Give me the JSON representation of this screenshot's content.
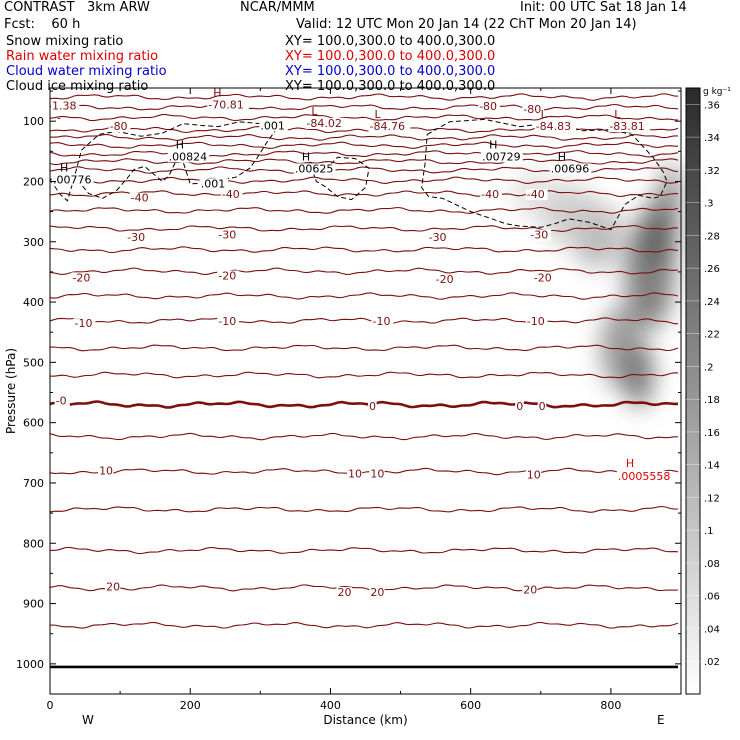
{
  "header": {
    "model": "CONTRAST   3km ARW",
    "center": "NCAR/MMM",
    "init": "Init: 00 UTC Sat 18 Jan 14",
    "fcst": "Fcst:    60 h",
    "valid": "Valid: 12 UTC Mon 20 Jan 14 (22 ChT Mon 20 Jan 14)",
    "fields": [
      {
        "name": "Snow mixing ratio",
        "xy": "XY= 100.0,300.0 to 400.0,300.0",
        "color": "#000000"
      },
      {
        "name": "Rain water mixing ratio",
        "xy": "XY= 100.0,300.0 to 400.0,300.0",
        "color": "#dd0000"
      },
      {
        "name": "Cloud water mixing ratio",
        "xy": "XY= 100.0,300.0 to 400.0,300.0",
        "color": "#0000cc"
      },
      {
        "name": "Cloud ice mixing ratio",
        "xy": "XY= 100.0,300.0 to 400.0,300.0",
        "color": "#000000"
      }
    ]
  },
  "colors": {
    "temperature": "#7a1010",
    "zero_isotherm": "#7a1010",
    "cloud_ice_contour": "#000000",
    "snow_shading": "#555555",
    "rain_label": "#dd0000"
  },
  "chart_data": {
    "type": "heatmap",
    "title": "",
    "xlabel": "Distance (km)",
    "ylabel": "Pressure (hPa)",
    "xlim": [
      0,
      900
    ],
    "ylim": [
      1050,
      45
    ],
    "y_scale": "linear, pressure decreasing upward",
    "x_ticks": [
      "0",
      "200",
      "400",
      "600",
      "800"
    ],
    "y_ticks": [
      "100",
      "200",
      "300",
      "400",
      "500",
      "600",
      "700",
      "800",
      "900",
      "1000"
    ],
    "x_ends": {
      "left": "W",
      "right": "E"
    },
    "colorbar": {
      "unit": "g kg⁻¹",
      "ticks": [
        ".36",
        ".34",
        ".32",
        ".3",
        ".28",
        ".26",
        ".24",
        ".22",
        ".2",
        ".18",
        ".16",
        ".14",
        ".12",
        ".1",
        ".08",
        ".06",
        ".04",
        ".02"
      ],
      "range": [
        0,
        0.37
      ]
    },
    "temperature_contours": [
      {
        "p": 60
      },
      {
        "p": 77
      },
      {
        "p": 94
      },
      {
        "p": 114
      },
      {
        "p": 127
      },
      {
        "p": 140
      },
      {
        "p": 154
      },
      {
        "p": 167
      },
      {
        "p": 181
      },
      {
        "p": 198
      },
      {
        "p": 220
      },
      {
        "p": 248
      },
      {
        "p": 278
      },
      {
        "p": 313
      },
      {
        "p": 349
      },
      {
        "p": 390
      },
      {
        "p": 431
      },
      {
        "p": 476
      },
      {
        "p": 521
      },
      {
        "p": 570,
        "bold": true
      },
      {
        "p": 623
      },
      {
        "p": 681
      },
      {
        "p": 744
      },
      {
        "p": 812
      },
      {
        "p": 874
      },
      {
        "p": 936
      },
      {
        "p": 1005,
        "bold": true
      }
    ],
    "contour_labels": [
      {
        "text": "-80",
        "x": 85,
        "p": 108
      },
      {
        "text": "-80",
        "x": 612,
        "p": 75
      },
      {
        "text": "-80",
        "x": 675,
        "p": 80
      },
      {
        "text": "-40",
        "x": 115,
        "p": 227
      },
      {
        "text": "-40",
        "x": 245,
        "p": 221
      },
      {
        "text": "-40",
        "x": 615,
        "p": 221
      },
      {
        "text": "-40",
        "x": 680,
        "p": 221
      },
      {
        "text": "-30",
        "x": 110,
        "p": 292
      },
      {
        "text": "-30",
        "x": 240,
        "p": 288
      },
      {
        "text": "-30",
        "x": 540,
        "p": 292
      },
      {
        "text": "-30",
        "x": 685,
        "p": 288
      },
      {
        "text": "-20",
        "x": 32,
        "p": 359
      },
      {
        "text": "-20",
        "x": 240,
        "p": 356
      },
      {
        "text": "-20",
        "x": 550,
        "p": 362
      },
      {
        "text": "-20",
        "x": 690,
        "p": 359
      },
      {
        "text": "-10",
        "x": 35,
        "p": 435
      },
      {
        "text": "-10",
        "x": 240,
        "p": 431
      },
      {
        "text": "-10",
        "x": 460,
        "p": 431
      },
      {
        "text": "-10",
        "x": 680,
        "p": 431
      },
      {
        "text": "-0",
        "x": 8,
        "p": 563
      },
      {
        "text": "0",
        "x": 455,
        "p": 572
      },
      {
        "text": "0",
        "x": 665,
        "p": 572
      },
      {
        "text": "0",
        "x": 697,
        "p": 572
      },
      {
        "text": "10",
        "x": 70,
        "p": 679
      },
      {
        "text": "10",
        "x": 425,
        "p": 684
      },
      {
        "text": "10",
        "x": 457,
        "p": 684
      },
      {
        "text": "10",
        "x": 680,
        "p": 686
      },
      {
        "text": "20",
        "x": 80,
        "p": 872
      },
      {
        "text": "20",
        "x": 410,
        "p": 881
      },
      {
        "text": "20",
        "x": 457,
        "p": 881
      },
      {
        "text": "20",
        "x": 675,
        "p": 877
      }
    ],
    "highs_lows": [
      {
        "marker": "H",
        "value": "-70.81",
        "x": 240,
        "p": 72
      },
      {
        "marker": "L",
        "value": "-84.02",
        "x": 380,
        "p": 103
      },
      {
        "marker": "L",
        "value": "-84.76",
        "x": 470,
        "p": 108
      },
      {
        "marker": "L",
        "value": "-84.83",
        "x": 707,
        "p": 108
      },
      {
        "marker": "L",
        "value": "-83.81",
        "x": 812,
        "p": 108
      }
    ],
    "top_left_value": "1.38",
    "top_left_marker": "-",
    "cloud_ice_contour": {
      "value": ".001",
      "labels": [
        {
          "text": ".001",
          "x": 300,
          "p": 107
        },
        {
          "text": ".001",
          "x": 215,
          "p": 203
        }
      ],
      "points": [
        [
          0,
          197
        ],
        [
          15,
          222
        ],
        [
          25,
          232
        ],
        [
          35,
          192
        ],
        [
          45,
          148
        ],
        [
          70,
          122
        ],
        [
          95,
          117
        ],
        [
          130,
          125
        ],
        [
          160,
          120
        ],
        [
          190,
          104
        ],
        [
          215,
          107
        ],
        [
          240,
          109
        ],
        [
          270,
          101
        ],
        [
          300,
          104
        ],
        [
          325,
          110
        ],
        [
          310,
          134
        ],
        [
          295,
          162
        ],
        [
          285,
          178
        ],
        [
          265,
          193
        ],
        [
          240,
          198
        ],
        [
          215,
          203
        ],
        [
          200,
          204
        ],
        [
          190,
          168
        ],
        [
          180,
          165
        ],
        [
          170,
          190
        ],
        [
          160,
          200
        ],
        [
          150,
          190
        ],
        [
          135,
          175
        ],
        [
          120,
          180
        ],
        [
          110,
          195
        ],
        [
          95,
          215
        ],
        [
          75,
          228
        ],
        [
          55,
          220
        ],
        [
          40,
          198
        ],
        [
          35,
          192
        ]
      ],
      "points_b": [
        [
          370,
          168
        ],
        [
          395,
          178
        ],
        [
          410,
          160
        ],
        [
          435,
          162
        ],
        [
          455,
          178
        ],
        [
          450,
          210
        ],
        [
          430,
          230
        ],
        [
          410,
          225
        ],
        [
          392,
          208
        ],
        [
          380,
          200
        ],
        [
          370,
          168
        ]
      ],
      "points_c": [
        [
          538,
          122
        ],
        [
          570,
          101
        ],
        [
          620,
          97
        ],
        [
          670,
          109
        ],
        [
          720,
          102
        ],
        [
          760,
          116
        ],
        [
          800,
          114
        ],
        [
          830,
          122
        ],
        [
          860,
          160
        ],
        [
          875,
          185
        ],
        [
          880,
          200
        ],
        [
          870,
          225
        ],
        [
          860,
          228
        ],
        [
          840,
          223
        ],
        [
          820,
          238
        ],
        [
          800,
          280
        ],
        [
          770,
          268
        ],
        [
          740,
          262
        ],
        [
          720,
          270
        ],
        [
          700,
          276
        ],
        [
          670,
          274
        ],
        [
          650,
          270
        ],
        [
          630,
          262
        ],
        [
          600,
          250
        ],
        [
          560,
          228
        ],
        [
          540,
          225
        ],
        [
          530,
          210
        ],
        [
          535,
          170
        ],
        [
          538,
          122
        ]
      ]
    },
    "snow_maxima": [
      {
        "text": ".00824",
        "marker": "H",
        "x": 175,
        "p": 160
      },
      {
        "text": ".00625",
        "marker": "H",
        "x": 355,
        "p": 180
      },
      {
        "text": ".00776",
        "marker": "H",
        "x": 10,
        "p": 198
      },
      {
        "text": ".00729",
        "marker": "H",
        "x": 622,
        "p": 160
      },
      {
        "text": ".00696",
        "marker": "H",
        "x": 720,
        "p": 180
      }
    ],
    "rain_maxima": [
      {
        "text": ".0005558",
        "marker": "H",
        "x": 810,
        "p": 690
      }
    ],
    "snow_plumes": [
      {
        "x": 815,
        "p": 475,
        "rx": 30,
        "ry": 70,
        "v": 0.2
      },
      {
        "x": 840,
        "p": 520,
        "rx": 20,
        "ry": 55,
        "v": 0.28
      },
      {
        "x": 855,
        "p": 350,
        "rx": 35,
        "ry": 95,
        "v": 0.26
      },
      {
        "x": 870,
        "p": 285,
        "rx": 25,
        "ry": 60,
        "v": 0.3
      },
      {
        "x": 780,
        "p": 290,
        "rx": 35,
        "ry": 55,
        "v": 0.14
      },
      {
        "x": 740,
        "p": 255,
        "rx": 40,
        "ry": 50,
        "v": 0.1
      },
      {
        "x": 690,
        "p": 220,
        "rx": 30,
        "ry": 40,
        "v": 0.06
      },
      {
        "x": 885,
        "p": 220,
        "rx": 15,
        "ry": 50,
        "v": 0.24
      }
    ]
  }
}
